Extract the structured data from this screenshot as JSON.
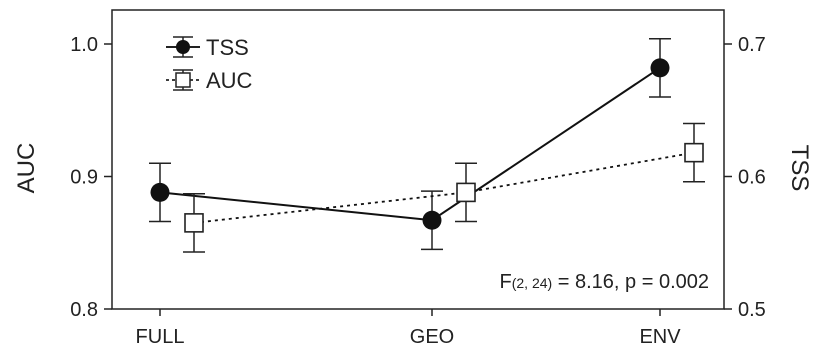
{
  "chart_data": {
    "type": "line",
    "categories": [
      "FULL",
      "GEO",
      "ENV"
    ],
    "ylabel_left": "AUC",
    "ylabel_right": "TSS",
    "ylim_left": [
      0.8,
      1.0
    ],
    "ylim_right": [
      0.5,
      0.7
    ],
    "yticks_left": [
      "0.8",
      "0.9",
      "1.0"
    ],
    "yticks_right": [
      "0.5",
      "0.6",
      "0.7"
    ],
    "series": [
      {
        "name": "TSS",
        "axis": "right",
        "marker": "filled-circle",
        "line": "solid",
        "values": [
          0.588,
          0.567,
          0.682
        ],
        "errors": [
          0.022,
          0.022,
          0.022
        ]
      },
      {
        "name": "AUC",
        "axis": "left",
        "marker": "open-square",
        "line": "dotted",
        "values": [
          0.865,
          0.888,
          0.918
        ],
        "errors": [
          0.022,
          0.022,
          0.022
        ]
      }
    ],
    "legend_position": "top-left",
    "annotation": "F(2, 24) = 8.16, p = 0.002",
    "annotation_parts": {
      "prefix": "F",
      "subscript": "(2, 24)",
      "rest": " = 8.16, p = 0.002"
    },
    "grid": false
  }
}
